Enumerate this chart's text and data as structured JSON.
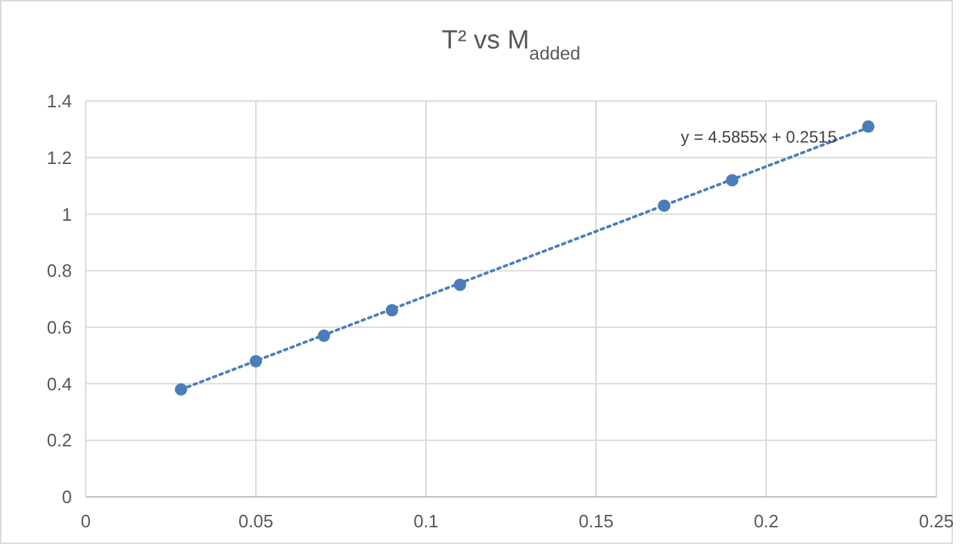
{
  "chart_data": {
    "type": "scatter",
    "title": "T² vs M$_{added}$",
    "x": [
      0.028,
      0.05,
      0.07,
      0.09,
      0.11,
      0.17,
      0.19,
      0.23
    ],
    "series": [
      {
        "color": "#4a7ebb",
        "marker": "circle",
        "values": [
          0.38,
          0.48,
          0.57,
          0.66,
          0.75,
          1.03,
          1.12,
          1.31
        ]
      },
      {
        "type": "line",
        "color": "#4a7ebb",
        "marker": "none",
        "line_style": "dotted",
        "x": [
          0.028,
          0.23
        ],
        "values": [
          0.38,
          1.306
        ]
      }
    ],
    "annotations": [
      "y = 4.5855x + 0.2515"
    ],
    "xlim": [
      0,
      0.25
    ],
    "xticks": [
      0,
      0.05,
      0.1,
      0.15,
      0.2,
      0.25
    ],
    "ylim": [
      0,
      1.4
    ],
    "yticks": [
      0,
      0.2,
      0.4,
      0.6,
      0.8,
      1,
      1.2,
      1.4
    ],
    "grid": true
  }
}
